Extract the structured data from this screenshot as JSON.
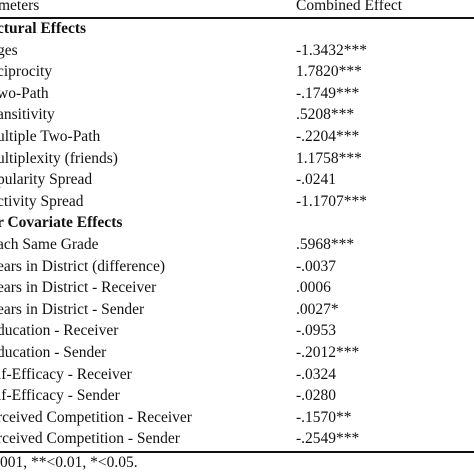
{
  "header": {
    "col1": "meters",
    "col2": "Combined Effect"
  },
  "rows": [
    {
      "type": "section",
      "label": "ctural Effects",
      "value": ""
    },
    {
      "type": "data",
      "label": "ges",
      "value": "-1.3432***"
    },
    {
      "type": "data",
      "label": "ciprocity",
      "value": "1.7820***"
    },
    {
      "type": "data",
      "label": "wo-Path",
      "value": "-.1749***"
    },
    {
      "type": "data",
      "label": "ansitivity",
      "value": ".5208***"
    },
    {
      "type": "data",
      "label": "ultiple Two-Path",
      "value": "-.2204***"
    },
    {
      "type": "data",
      "label": "ultiplexity (friends)",
      "value": "1.1758***"
    },
    {
      "type": "data",
      "label": "pularity Spread",
      "value": "-.0241"
    },
    {
      "type": "data",
      "label": "ctivity Spread",
      "value": "-1.1707***"
    },
    {
      "type": "section",
      "label": "r Covariate Effects",
      "value": ""
    },
    {
      "type": "data",
      "label": "ach Same Grade",
      "value": ".5968***"
    },
    {
      "type": "data",
      "label": "ears in District (difference)",
      "value": "-.0037"
    },
    {
      "type": "data",
      "label": "ears in District - Receiver",
      "value": ".0006"
    },
    {
      "type": "data",
      "label": "ears in District - Sender",
      "value": ".0027*"
    },
    {
      "type": "data",
      "label": "ducation - Receiver",
      "value": "-.0953"
    },
    {
      "type": "data",
      "label": "ducation - Sender",
      "value": "-.2012***"
    },
    {
      "type": "data",
      "label": "lf-Efficacy - Receiver",
      "value": "-.0324"
    },
    {
      "type": "data",
      "label": "lf-Efficacy - Sender",
      "value": "-.0280"
    },
    {
      "type": "data",
      "label": "rceived Competition - Receiver",
      "value": "-.1570**"
    },
    {
      "type": "data",
      "label": "rceived Competition - Sender",
      "value": "-.2549***"
    }
  ],
  "footnote": "001, **<0.01, *<0.05."
}
